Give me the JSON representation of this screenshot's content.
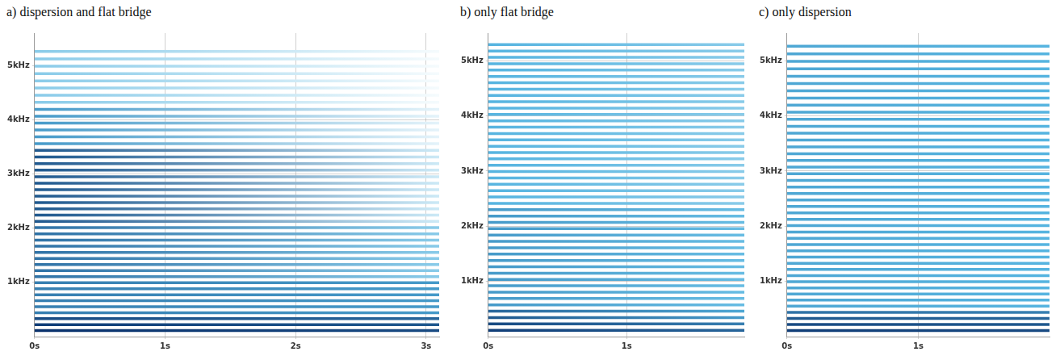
{
  "chart_data": [
    {
      "type": "line",
      "title": "a) dispersion and flat bridge",
      "color": "#08306b",
      "grid": true,
      "xlim": [
        0,
        3.1
      ],
      "xticks": [
        {
          "value": 0,
          "label": "0s"
        },
        {
          "value": 1,
          "label": "1s"
        },
        {
          "value": 2,
          "label": "2s"
        },
        {
          "value": 3,
          "label": "3s"
        }
      ],
      "ylim": [
        0,
        5600
      ],
      "yticks": [
        {
          "value": 1000,
          "label": "1kHz"
        },
        {
          "value": 2000,
          "label": "2kHz"
        },
        {
          "value": 3000,
          "label": "3kHz"
        },
        {
          "value": 4000,
          "label": "4kHz"
        },
        {
          "value": 5000,
          "label": "5kHz"
        }
      ],
      "harmonics": {
        "frequencies": [
          110,
          220,
          330,
          440,
          551,
          661,
          772,
          883,
          994,
          1105,
          1217,
          1329,
          1441,
          1554,
          1667,
          1781,
          1895,
          2010,
          2125,
          2241,
          2357,
          2474,
          2592,
          2710,
          2830,
          2950,
          3070,
          3192,
          3314,
          3437,
          3561,
          3686,
          3811,
          3938,
          4066,
          4194,
          4324,
          4455,
          4587,
          4719,
          4853,
          4989,
          5124,
          5261
        ],
        "levels": [
          1.0,
          0.95,
          0.9,
          0.7,
          0.7,
          0.7,
          0.7,
          0.7,
          0.7,
          0.75,
          0.75,
          0.75,
          0.75,
          0.75,
          0.75,
          0.75,
          0.75,
          0.75,
          0.85,
          0.85,
          0.85,
          0.85,
          0.85,
          0.85,
          0.85,
          0.85,
          0.85,
          0.85,
          0.85,
          0.85,
          0.6,
          0.6,
          0.6,
          0.6,
          0.6,
          0.6,
          0.35,
          0.35,
          0.35,
          0.35,
          0.35,
          0.35,
          0.35,
          0.35
        ],
        "end_levels": [
          0.9,
          0.85,
          0.8,
          0.6,
          0.6,
          0.6,
          0.6,
          0.6,
          0.6,
          0.35,
          0.35,
          0.35,
          0.35,
          0.35,
          0.35,
          0.35,
          0.35,
          0.35,
          0.15,
          0.15,
          0.15,
          0.15,
          0.15,
          0.15,
          0.15,
          0.15,
          0.15,
          0.15,
          0.15,
          0.15,
          0.08,
          0.08,
          0.08,
          0.08,
          0.08,
          0.08,
          0.03,
          0.03,
          0.03,
          0.03,
          0.03,
          0.03,
          0.03,
          0.03
        ]
      }
    },
    {
      "type": "line",
      "title": "b) only flat bridge",
      "color": "#08306b",
      "grid": true,
      "xlim": [
        0,
        1.85
      ],
      "xticks": [
        {
          "value": 0,
          "label": "0s"
        },
        {
          "value": 1,
          "label": "1s"
        }
      ],
      "ylim": [
        0,
        5500
      ],
      "yticks": [
        {
          "value": 1000,
          "label": "1kHz"
        },
        {
          "value": 2000,
          "label": "2kHz"
        },
        {
          "value": 3000,
          "label": "3kHz"
        },
        {
          "value": 4000,
          "label": "4kHz"
        },
        {
          "value": 5000,
          "label": "5kHz"
        }
      ],
      "harmonics": {
        "frequencies": [
          115,
          230,
          345,
          460,
          575,
          690,
          805,
          920,
          1035,
          1150,
          1265,
          1380,
          1495,
          1610,
          1725,
          1840,
          1955,
          2070,
          2185,
          2300,
          2415,
          2530,
          2645,
          2760,
          2875,
          2990,
          3105,
          3220,
          3335,
          3450,
          3565,
          3680,
          3795,
          3910,
          4025,
          4140,
          4255,
          4370,
          4485,
          4600,
          4715,
          4830,
          4945,
          5060,
          5175,
          5290
        ],
        "levels": [
          0.95,
          0.9,
          0.85,
          0.8,
          0.6,
          0.6,
          0.6,
          0.6,
          0.6,
          0.6,
          0.6,
          0.6,
          0.6,
          0.6,
          0.6,
          0.6,
          0.6,
          0.6,
          0.6,
          0.6,
          0.5,
          0.5,
          0.5,
          0.5,
          0.5,
          0.5,
          0.5,
          0.5,
          0.5,
          0.5,
          0.5,
          0.5,
          0.5,
          0.5,
          0.5,
          0.5,
          0.5,
          0.5,
          0.5,
          0.5,
          0.5,
          0.5,
          0.5,
          0.5,
          0.5,
          0.5
        ],
        "end_levels": [
          0.8,
          0.7,
          0.6,
          0.55,
          0.45,
          0.45,
          0.45,
          0.45,
          0.45,
          0.45,
          0.45,
          0.45,
          0.45,
          0.45,
          0.45,
          0.45,
          0.45,
          0.45,
          0.45,
          0.45,
          0.35,
          0.35,
          0.35,
          0.35,
          0.35,
          0.35,
          0.35,
          0.35,
          0.35,
          0.35,
          0.35,
          0.35,
          0.35,
          0.35,
          0.35,
          0.35,
          0.35,
          0.35,
          0.35,
          0.35,
          0.35,
          0.35,
          0.35,
          0.35,
          0.35,
          0.35
        ]
      }
    },
    {
      "type": "line",
      "title": "c) only dispersion",
      "color": "#08306b",
      "grid": true,
      "xlim": [
        0,
        2
      ],
      "xticks": [
        {
          "value": 0,
          "label": "0s"
        },
        {
          "value": 1,
          "label": "1s"
        }
      ],
      "ylim": [
        0,
        5500
      ],
      "yticks": [
        {
          "value": 1000,
          "label": "1kHz"
        },
        {
          "value": 2000,
          "label": "2kHz"
        },
        {
          "value": 3000,
          "label": "3kHz"
        },
        {
          "value": 4000,
          "label": "4kHz"
        },
        {
          "value": 5000,
          "label": "5kHz"
        }
      ],
      "harmonics": {
        "frequencies": [
          110,
          220,
          330,
          440,
          551,
          661,
          772,
          883,
          994,
          1105,
          1217,
          1329,
          1441,
          1554,
          1667,
          1781,
          1895,
          2010,
          2125,
          2241,
          2357,
          2474,
          2592,
          2710,
          2830,
          2950,
          3070,
          3192,
          3314,
          3437,
          3561,
          3686,
          3811,
          3938,
          4066,
          4194,
          4324,
          4455,
          4587,
          4719,
          4853,
          4989,
          5124,
          5261
        ],
        "levels": [
          0.95,
          0.9,
          0.85,
          0.75,
          0.55,
          0.55,
          0.55,
          0.55,
          0.55,
          0.55,
          0.55,
          0.55,
          0.55,
          0.55,
          0.55,
          0.55,
          0.55,
          0.55,
          0.55,
          0.55,
          0.55,
          0.55,
          0.55,
          0.55,
          0.55,
          0.55,
          0.55,
          0.55,
          0.55,
          0.55,
          0.55,
          0.55,
          0.55,
          0.55,
          0.55,
          0.55,
          0.55,
          0.55,
          0.55,
          0.55,
          0.55,
          0.55,
          0.55,
          0.55
        ],
        "end_levels": [
          0.9,
          0.85,
          0.8,
          0.7,
          0.5,
          0.5,
          0.5,
          0.5,
          0.5,
          0.5,
          0.5,
          0.5,
          0.5,
          0.5,
          0.5,
          0.5,
          0.5,
          0.5,
          0.5,
          0.5,
          0.5,
          0.5,
          0.5,
          0.5,
          0.5,
          0.5,
          0.5,
          0.5,
          0.5,
          0.5,
          0.5,
          0.5,
          0.5,
          0.5,
          0.5,
          0.5,
          0.5,
          0.5,
          0.5,
          0.5,
          0.5,
          0.5,
          0.5,
          0.5
        ]
      }
    }
  ]
}
